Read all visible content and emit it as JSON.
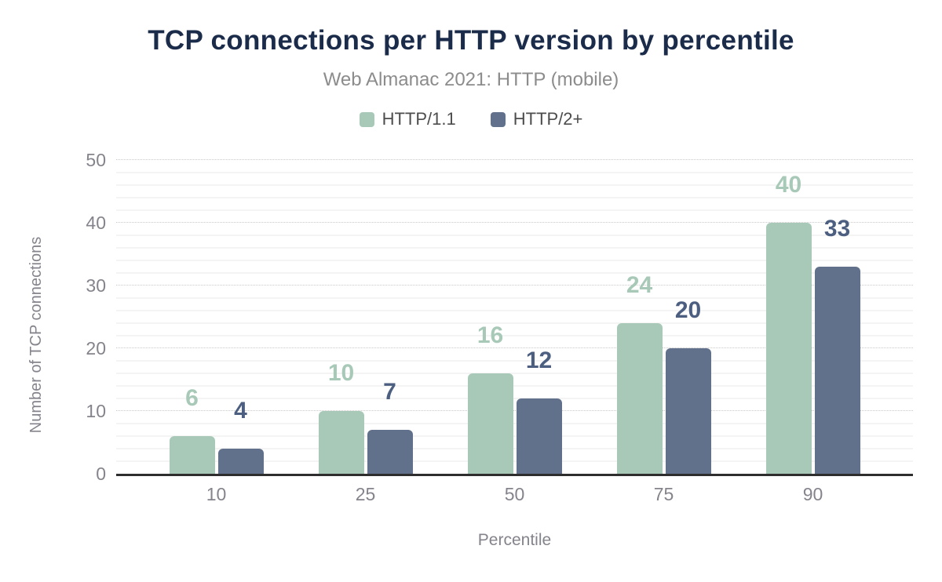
{
  "header": {
    "title": "TCP connections per HTTP version by percentile",
    "subtitle": "Web Almanac 2021: HTTP (mobile)"
  },
  "chart_data": {
    "type": "bar",
    "title": "TCP connections per HTTP version by percentile",
    "subtitle": "Web Almanac 2021: HTTP (mobile)",
    "categories": [
      "10",
      "25",
      "50",
      "75",
      "90"
    ],
    "series": [
      {
        "name": "HTTP/1.1",
        "values": [
          6,
          10,
          16,
          24,
          40
        ],
        "color": "#a8c9b8",
        "label_color": "#a8c9b8"
      },
      {
        "name": "HTTP/2+",
        "values": [
          4,
          7,
          12,
          20,
          33
        ],
        "color": "#61718b",
        "label_color": "#4c5f80"
      }
    ],
    "xlabel": "Percentile",
    "ylabel": "Number of TCP connections",
    "ylim": [
      0,
      50
    ],
    "y_ticks": [
      0,
      10,
      20,
      30,
      40,
      50
    ],
    "minor_grid_step": 2,
    "grid": "major dotted horizontal lines every 10, faint solid minor lines every 2",
    "legend_position": "top-center",
    "data_labels": "shown above each bar"
  },
  "colors": {
    "title_text": "#1b2b4a",
    "subtitle_text": "#8c8c8c",
    "legend_text": "#4d4d4d",
    "axis_text": "#84848c",
    "axis_line": "#2e2e2e",
    "major_gridline": "#c8c8c8",
    "minor_gridline": "#f4f4f4",
    "background": "#ffffff"
  }
}
